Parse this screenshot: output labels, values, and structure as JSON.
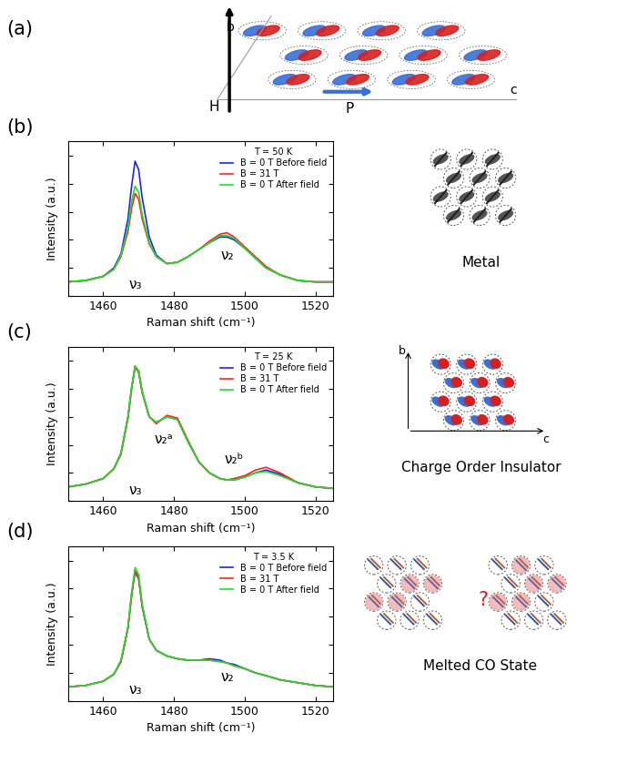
{
  "chart_data": [
    {
      "type": "line",
      "panel_label": "(b)",
      "phase_label": "Metal",
      "legend_title": "T = 50 K",
      "legend": "upper right",
      "xlabel": "Raman shift (cm⁻¹)",
      "ylabel": "Intensity (a.u.)",
      "x": [
        1450,
        1455,
        1460,
        1463,
        1465,
        1467,
        1468,
        1469,
        1470,
        1471,
        1473,
        1475,
        1478,
        1481,
        1484,
        1487,
        1490,
        1493,
        1495,
        1497,
        1500,
        1503,
        1506,
        1510,
        1515,
        1520,
        1525
      ],
      "series": [
        {
          "name": "B = 0 T Before field",
          "color": "#1f1fff",
          "values": [
            1.0,
            1.1,
            1.4,
            2.0,
            3.0,
            5.5,
            7.8,
            9.6,
            9.0,
            7.0,
            4.2,
            2.9,
            2.3,
            2.4,
            2.8,
            3.3,
            3.8,
            4.2,
            4.2,
            4.0,
            3.4,
            2.7,
            2.0,
            1.5,
            1.1,
            1.0,
            1.0
          ]
        },
        {
          "name": "B = 31 T",
          "color": "#ff2020",
          "values": [
            1.0,
            1.1,
            1.4,
            1.9,
            2.8,
            4.6,
            6.2,
            7.3,
            6.9,
            5.5,
            3.7,
            2.8,
            2.3,
            2.4,
            2.8,
            3.3,
            3.9,
            4.4,
            4.5,
            4.2,
            3.5,
            2.8,
            2.1,
            1.5,
            1.1,
            1.0,
            1.0
          ]
        },
        {
          "name": "B = 0 T After field",
          "color": "#20e020",
          "values": [
            1.0,
            1.1,
            1.4,
            1.9,
            2.9,
            4.9,
            6.7,
            7.8,
            7.4,
            5.8,
            3.8,
            2.8,
            2.3,
            2.4,
            2.8,
            3.3,
            3.8,
            4.3,
            4.3,
            4.1,
            3.4,
            2.7,
            2.0,
            1.5,
            1.1,
            1.0,
            1.0
          ]
        }
      ],
      "annotations": [
        {
          "text": "ν₃",
          "x": 1469,
          "y": 0.3
        },
        {
          "text": "ν₂",
          "x": 1495,
          "y": 2.4
        }
      ],
      "xlim": [
        1450,
        1525
      ],
      "ylim": [
        0,
        11
      ],
      "xticks": [
        1460,
        1480,
        1500,
        1520
      ],
      "yticks": [
        0,
        2,
        4,
        6,
        8,
        10
      ],
      "tick_labels": "x"
    },
    {
      "type": "line",
      "panel_label": "(c)",
      "phase_label": "Charge Order Insulator",
      "legend_title": "T = 25 K",
      "legend": "upper right",
      "xlabel": "Raman shift (cm⁻¹)",
      "ylabel": "Intensity (a.u.)",
      "x": [
        1450,
        1455,
        1460,
        1463,
        1465,
        1467,
        1468,
        1469,
        1470,
        1471,
        1473,
        1475,
        1478,
        1481,
        1484,
        1487,
        1490,
        1493,
        1495,
        1497,
        1500,
        1503,
        1506,
        1510,
        1515,
        1520,
        1525
      ],
      "series": [
        {
          "name": "B = 0 T Before field",
          "color": "#1f1fff",
          "values": [
            1.0,
            1.2,
            1.6,
            2.3,
            3.4,
            6.0,
            8.0,
            9.6,
            9.2,
            7.8,
            6.0,
            5.6,
            6.0,
            5.8,
            4.2,
            2.8,
            2.0,
            1.6,
            1.5,
            1.5,
            1.7,
            2.0,
            2.2,
            1.9,
            1.3,
            1.0,
            0.9
          ]
        },
        {
          "name": "B = 31 T",
          "color": "#ff2020",
          "values": [
            1.0,
            1.2,
            1.6,
            2.3,
            3.3,
            5.9,
            8.0,
            9.5,
            9.2,
            7.7,
            6.0,
            5.5,
            6.1,
            5.9,
            4.3,
            2.8,
            2.0,
            1.6,
            1.5,
            1.6,
            1.8,
            2.2,
            2.4,
            2.0,
            1.3,
            1.0,
            0.9
          ]
        },
        {
          "name": "B = 0 T After field",
          "color": "#20e020",
          "values": [
            1.0,
            1.2,
            1.6,
            2.3,
            3.4,
            6.0,
            8.1,
            9.6,
            9.3,
            7.8,
            6.0,
            5.6,
            6.0,
            5.8,
            4.2,
            2.8,
            2.0,
            1.6,
            1.5,
            1.5,
            1.7,
            2.0,
            2.1,
            1.8,
            1.3,
            1.0,
            0.9
          ]
        }
      ],
      "annotations": [
        {
          "text": "ν₃",
          "x": 1469,
          "y": 0.3
        },
        {
          "text": "ν₂ᵃ",
          "x": 1477,
          "y": 3.9
        },
        {
          "text": "ν₂ᵇ",
          "x": 1497,
          "y": 2.5
        }
      ],
      "xlim": [
        1450,
        1525
      ],
      "ylim": [
        0,
        11
      ],
      "xticks": [
        1460,
        1480,
        1500,
        1520
      ],
      "yticks": [
        0,
        2,
        4,
        6,
        8,
        10
      ],
      "tick_labels": "x"
    },
    {
      "type": "line",
      "panel_label": "(d)",
      "phase_label": "Melted CO State",
      "legend_title": "T = 3.5 K",
      "legend": "upper right",
      "xlabel": "Raman shift (cm⁻¹)",
      "ylabel": "Intensity (a.u.)",
      "x": [
        1450,
        1455,
        1460,
        1463,
        1465,
        1467,
        1468,
        1469,
        1470,
        1471,
        1473,
        1475,
        1478,
        1481,
        1484,
        1487,
        1490,
        1493,
        1495,
        1497,
        1500,
        1503,
        1506,
        1510,
        1515,
        1520,
        1525
      ],
      "series": [
        {
          "name": "B = 0 T Before field",
          "color": "#1f1fff",
          "values": [
            1.0,
            1.1,
            1.4,
            1.9,
            2.8,
            5.2,
            7.5,
            9.2,
            8.7,
            6.7,
            4.4,
            3.6,
            3.2,
            3.0,
            2.9,
            2.9,
            3.0,
            2.9,
            2.7,
            2.6,
            2.3,
            2.0,
            1.8,
            1.5,
            1.3,
            1.1,
            1.0
          ]
        },
        {
          "name": "B = 31 T",
          "color": "#ff2020",
          "values": [
            1.0,
            1.1,
            1.4,
            1.9,
            2.8,
            5.2,
            7.5,
            9.3,
            8.8,
            6.8,
            4.4,
            3.6,
            3.2,
            3.0,
            2.9,
            2.9,
            2.9,
            2.8,
            2.7,
            2.5,
            2.3,
            2.0,
            1.8,
            1.5,
            1.3,
            1.1,
            1.0
          ]
        },
        {
          "name": "B = 0 T After field",
          "color": "#20e020",
          "values": [
            1.0,
            1.1,
            1.4,
            1.9,
            2.9,
            5.3,
            7.7,
            9.5,
            9.0,
            6.9,
            4.4,
            3.6,
            3.2,
            3.0,
            2.9,
            2.9,
            2.9,
            2.8,
            2.7,
            2.5,
            2.3,
            2.0,
            1.8,
            1.5,
            1.3,
            1.1,
            1.0
          ]
        }
      ],
      "annotations": [
        {
          "text": "ν₃",
          "x": 1469,
          "y": 0.3
        },
        {
          "text": "ν₂",
          "x": 1495,
          "y": 1.2
        }
      ],
      "xlim": [
        1450,
        1525
      ],
      "ylim": [
        0,
        11
      ],
      "xticks": [
        1460,
        1480,
        1500,
        1520
      ],
      "yticks": [
        0,
        2,
        4,
        6,
        8,
        10
      ],
      "tick_labels": "x"
    }
  ],
  "diagram_a": {
    "panel_label": "(a)",
    "b_axis": "b",
    "c_axis": "c",
    "field": "H",
    "polarization": "P"
  },
  "co_axes": {
    "b": "b",
    "c": "c"
  },
  "melted_question": "?"
}
